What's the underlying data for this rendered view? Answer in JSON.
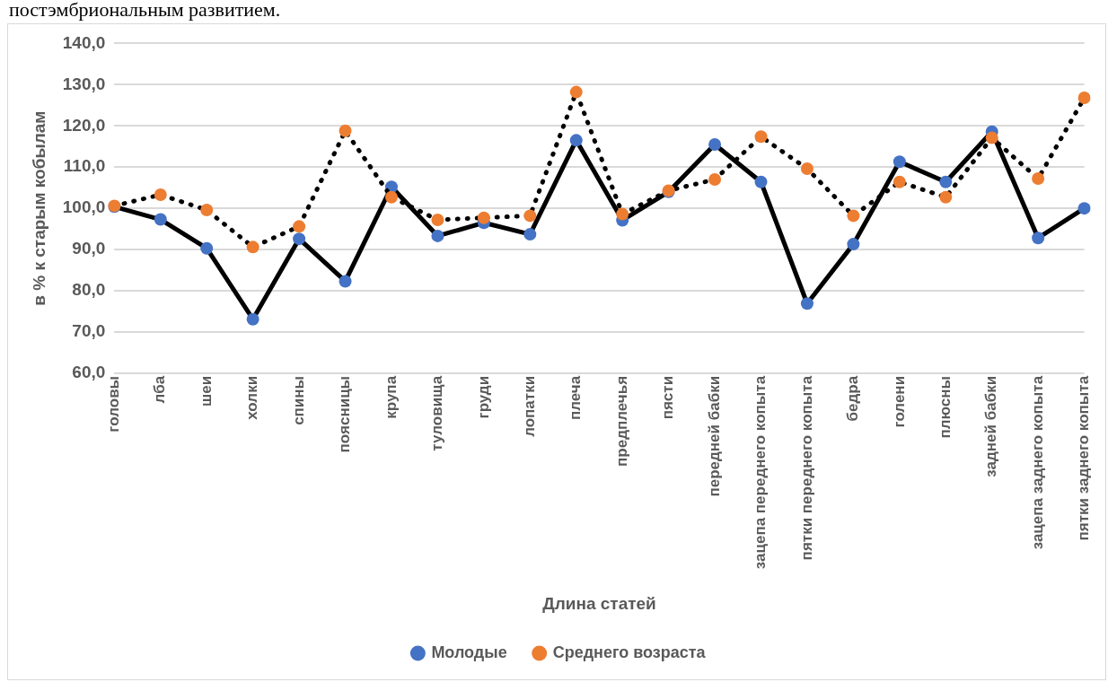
{
  "chart_data": {
    "type": "line",
    "annotations": [
      "постэмбриональным развитием."
    ],
    "xlabel": "Длина статей",
    "ylabel": "в % к старым кобылам",
    "categories": [
      "головы",
      "лба",
      "шеи",
      "холки",
      "спины",
      "поясницы",
      "крупа",
      "туловища",
      "груди",
      "лопатки",
      "плеча",
      "предплечья",
      "пясти",
      "передней бабки",
      "зацепа переднего копыта",
      "пятки переднего копыта",
      "бедра",
      "голени",
      "плюсны",
      "задней бабки",
      "зацепа заднего копыта",
      "пятки заднего копыта"
    ],
    "series": [
      {
        "name": "Молодые",
        "color": "#4472c4",
        "line_style": "solid",
        "values": [
          100.4,
          97.3,
          90.3,
          73.1,
          92.6,
          82.3,
          105.2,
          93.3,
          96.5,
          93.7,
          116.5,
          97.1,
          104.0,
          115.5,
          106.4,
          76.9,
          91.3,
          111.3,
          106.4,
          118.6,
          92.8,
          100.0
        ]
      },
      {
        "name": "Среднего возраста",
        "color": "#ed7d31",
        "line_style": "dotted",
        "values": [
          100.6,
          103.3,
          99.6,
          90.6,
          95.6,
          118.8,
          102.7,
          97.2,
          97.7,
          98.2,
          128.2,
          98.6,
          104.3,
          107.0,
          117.4,
          109.6,
          98.2,
          106.4,
          102.7,
          117.1,
          107.2,
          126.8
        ]
      }
    ],
    "ylim": [
      60,
      140
    ],
    "yticks": [
      {
        "value": 60,
        "label": "60,0"
      },
      {
        "value": 70,
        "label": "70,0"
      },
      {
        "value": 80,
        "label": "80,0"
      },
      {
        "value": 90,
        "label": "90,0"
      },
      {
        "value": 100,
        "label": "100,0"
      },
      {
        "value": 110,
        "label": "110,0"
      },
      {
        "value": 120,
        "label": "120,0"
      },
      {
        "value": 130,
        "label": "130,0"
      },
      {
        "value": 140,
        "label": "140,0"
      }
    ],
    "grid": "y",
    "legend": "bottom",
    "marker": "circle"
  }
}
